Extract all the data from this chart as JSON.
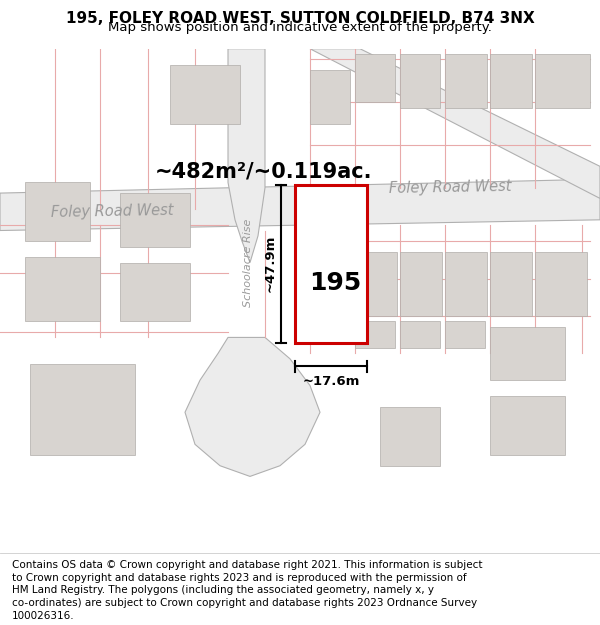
{
  "title_line1": "195, FOLEY ROAD WEST, SUTTON COLDFIELD, B74 3NX",
  "title_line2": "Map shows position and indicative extent of the property.",
  "area_label": "~482m²/~0.119ac.",
  "property_number": "195",
  "dim_width": "~17.6m",
  "dim_height": "~47.9m",
  "road_label_left": "Foley Road West",
  "road_label_right": "Foley Road West",
  "road_label_diagonal": "Schoolacre Rise",
  "bg_color": "#f7f4f2",
  "road_band_color": "#e8e8e8",
  "road_band_edge": "#b8b8b8",
  "plot_outline_color": "#cc0000",
  "plot_fill_color": "#ffffff",
  "grid_line_color": "#e8aaaa",
  "building_color": "#d8d4d0",
  "building_edge": "#b0aca8",
  "dim_line_color": "#000000",
  "title_fontsize": 11,
  "subtitle_fontsize": 9.5,
  "footer_fontsize": 7.5,
  "footer_lines": [
    "Contains OS data © Crown copyright and database right 2021. This information is subject",
    "to Crown copyright and database rights 2023 and is reproduced with the permission of",
    "HM Land Registry. The polygons (including the associated geometry, namely x, y",
    "co-ordinates) are subject to Crown copyright and database rights 2023 Ordnance Survey",
    "100026316."
  ]
}
